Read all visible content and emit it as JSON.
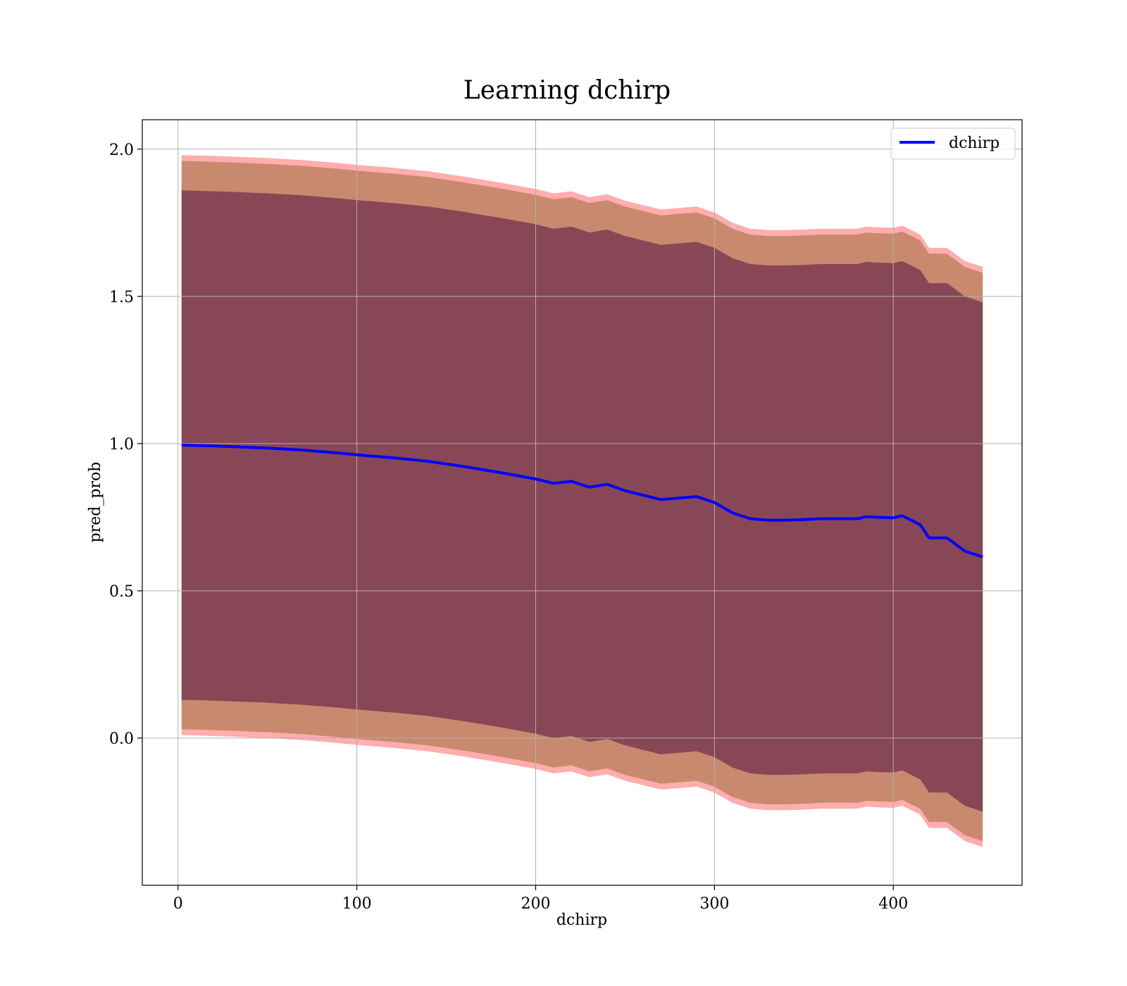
{
  "chart_data": {
    "type": "line",
    "title": "Learning dchirp",
    "xlabel": "dchirp",
    "ylabel": "pred_prob",
    "xlim": [
      -20,
      472
    ],
    "ylim": [
      -0.5,
      2.1
    ],
    "xticks": [
      0,
      100,
      200,
      300,
      400
    ],
    "yticks": [
      0.0,
      0.5,
      1.0,
      1.5,
      2.0
    ],
    "xtick_labels": [
      "0",
      "100",
      "200",
      "300",
      "400"
    ],
    "ytick_labels": [
      "0.0",
      "0.5",
      "1.0",
      "1.5",
      "2.0"
    ],
    "grid": true,
    "legend": {
      "position": "top-right",
      "entries": [
        "dchirp"
      ]
    },
    "x": [
      2,
      15,
      30,
      50,
      70,
      90,
      100,
      120,
      140,
      160,
      180,
      200,
      210,
      220,
      230,
      240,
      250,
      260,
      270,
      280,
      290,
      300,
      310,
      320,
      330,
      340,
      350,
      360,
      370,
      380,
      385,
      390,
      400,
      405,
      410,
      415,
      420,
      430,
      440,
      450
    ],
    "mean": [
      0.995,
      0.993,
      0.99,
      0.985,
      0.978,
      0.968,
      0.962,
      0.952,
      0.94,
      0.922,
      0.902,
      0.88,
      0.865,
      0.872,
      0.852,
      0.862,
      0.84,
      0.825,
      0.81,
      0.815,
      0.82,
      0.8,
      0.765,
      0.745,
      0.74,
      0.74,
      0.742,
      0.745,
      0.745,
      0.745,
      0.752,
      0.75,
      0.748,
      0.755,
      0.74,
      0.725,
      0.68,
      0.68,
      0.635,
      0.615
    ],
    "series": [
      {
        "name": "dchirp",
        "color": "#0000ff",
        "values": [
          0.995,
          0.993,
          0.99,
          0.985,
          0.978,
          0.968,
          0.962,
          0.952,
          0.94,
          0.922,
          0.902,
          0.88,
          0.865,
          0.872,
          0.852,
          0.862,
          0.84,
          0.825,
          0.81,
          0.815,
          0.82,
          0.8,
          0.765,
          0.745,
          0.74,
          0.74,
          0.742,
          0.745,
          0.745,
          0.745,
          0.752,
          0.75,
          0.748,
          0.755,
          0.74,
          0.725,
          0.68,
          0.68,
          0.635,
          0.615
        ]
      }
    ],
    "bands": [
      {
        "halfwidth": 0.985,
        "fill": "#ff0000",
        "opacity": 0.32
      },
      {
        "halfwidth": 0.965,
        "fill": "#9c6b3c",
        "opacity": 0.55
      },
      {
        "halfwidth": 0.865,
        "fill": "#5e1a46",
        "opacity": 0.6
      }
    ],
    "band_decay": 0.0
  }
}
